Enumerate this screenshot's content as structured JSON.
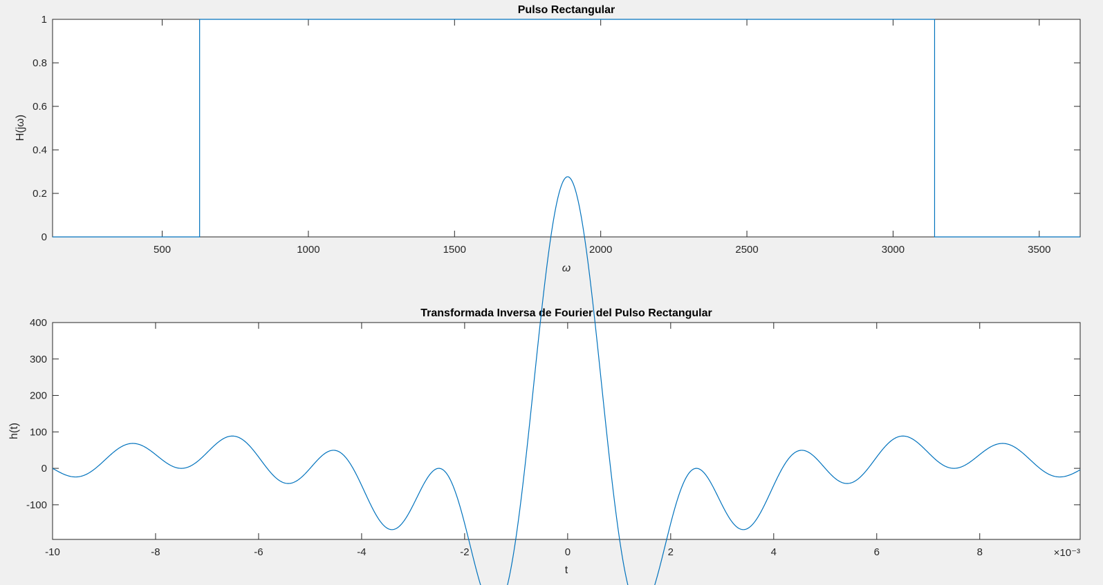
{
  "chart_data": [
    {
      "type": "line",
      "title": "Pulso Rectangular",
      "xlabel": "ω",
      "ylabel": "H(jω)",
      "xlim": [
        125,
        3640
      ],
      "ylim": [
        0,
        1
      ],
      "xticks": [
        500,
        1000,
        1500,
        2000,
        2500,
        3000,
        3500
      ],
      "xtick_labels": [
        "500",
        "1000",
        "1500",
        "2000",
        "2500",
        "3000",
        "3500"
      ],
      "yticks": [
        0,
        0.2,
        0.4,
        0.6,
        0.8,
        1
      ],
      "ytick_labels": [
        "0",
        "0.2",
        "0.4",
        "0.6",
        "0.8",
        "1"
      ],
      "grid": false,
      "color": "#0072bd",
      "series": [
        {
          "x": [
            125,
            628,
            628,
            3142,
            3142,
            3640
          ],
          "y": [
            0,
            0,
            1,
            1,
            0,
            0
          ]
        }
      ]
    },
    {
      "type": "line",
      "title": "Transformada Inversa de Fourier del Pulso Rectangular",
      "xlabel": "t",
      "ylabel": "h(t)",
      "x_multiplier": "×10⁻³",
      "xlim": [
        -0.01,
        0.00995
      ],
      "ylim": [
        -195,
        400
      ],
      "xticks": [
        -0.01,
        -0.008,
        -0.006,
        -0.004,
        -0.002,
        0,
        0.002,
        0.004,
        0.006,
        0.008
      ],
      "xtick_labels": [
        "-10",
        "-8",
        "-6",
        "-4",
        "-2",
        "0",
        "2",
        "4",
        "6",
        "8"
      ],
      "yticks": [
        -100,
        0,
        100,
        200,
        300,
        400
      ],
      "ytick_labels": [
        "-100",
        "0",
        "100",
        "200",
        "300",
        "400"
      ],
      "grid": false,
      "color": "#0072bd",
      "function": "h(t) = (sin(w2 t) - sin(w1 t)) / (π t)",
      "w1": 628.3,
      "w2": 3141.6
    }
  ]
}
